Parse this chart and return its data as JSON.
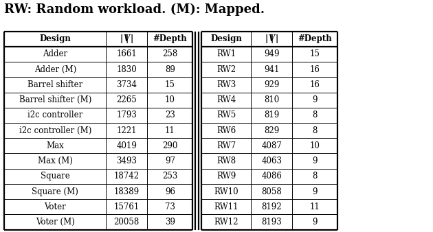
{
  "caption": "RW: Random workload. (M): Mapped.",
  "left_headers": [
    "Design",
    "|V|",
    "#Depth"
  ],
  "right_headers": [
    "Design",
    "|V|",
    "#Depth"
  ],
  "left_rows": [
    [
      "Adder",
      "1661",
      "258"
    ],
    [
      "Adder (M)",
      "1830",
      "89"
    ],
    [
      "Barrel shifter",
      "3734",
      "15"
    ],
    [
      "Barrel shifter (M)",
      "2265",
      "10"
    ],
    [
      "i2c controller",
      "1793",
      "23"
    ],
    [
      "i2c controller (M)",
      "1221",
      "11"
    ],
    [
      "Max",
      "4019",
      "290"
    ],
    [
      "Max (M)",
      "3493",
      "97"
    ],
    [
      "Square",
      "18742",
      "253"
    ],
    [
      "Square (M)",
      "18389",
      "96"
    ],
    [
      "Voter",
      "15761",
      "73"
    ],
    [
      "Voter (M)",
      "20058",
      "39"
    ]
  ],
  "right_rows": [
    [
      "RW1",
      "949",
      "15"
    ],
    [
      "RW2",
      "941",
      "16"
    ],
    [
      "RW3",
      "929",
      "16"
    ],
    [
      "RW4",
      "810",
      "9"
    ],
    [
      "RW5",
      "819",
      "8"
    ],
    [
      "RW6",
      "829",
      "8"
    ],
    [
      "RW7",
      "4087",
      "10"
    ],
    [
      "RW8",
      "4063",
      "9"
    ],
    [
      "RW9",
      "4086",
      "8"
    ],
    [
      "RW10",
      "8058",
      "9"
    ],
    [
      "RW11",
      "8192",
      "11"
    ],
    [
      "RW12",
      "8193",
      "9"
    ]
  ],
  "caption_fontsize": 13,
  "header_fontsize": 8.5,
  "cell_fontsize": 8.5,
  "background_color": "#ffffff",
  "fig_width": 6.3,
  "fig_height": 3.38,
  "dpi": 100
}
